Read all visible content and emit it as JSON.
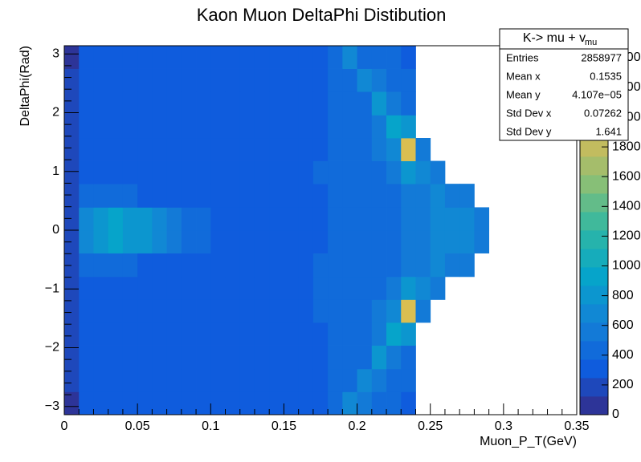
{
  "chart_data": {
    "type": "heatmap",
    "title": "Kaon Muon DeltaPhi Distibution",
    "x_label": "Muon_P_T(GeV)",
    "y_label": "DeltaPhi(Rad)",
    "xlim": [
      0,
      0.35
    ],
    "ylim": [
      -3.14,
      3.14
    ],
    "xticks": [
      0,
      0.05,
      0.1,
      0.15,
      0.2,
      0.25,
      0.3,
      0.35
    ],
    "yticks": [
      {
        "value": -3,
        "label": "−3"
      },
      {
        "value": -2,
        "label": "−2"
      },
      {
        "value": -1,
        "label": "−1"
      },
      0,
      1,
      2,
      3
    ],
    "zlim": [
      0,
      2480
    ],
    "zticks": [
      0,
      200,
      400,
      600,
      800,
      1000,
      1200,
      1400,
      1600,
      1800,
      2000,
      2200,
      2400
    ],
    "contours": 20,
    "palette": [
      "#352a87",
      "#0f5cdd",
      "#1481d6",
      "#06a4ca",
      "#2eb7a4",
      "#87bf77",
      "#d1bb59",
      "#fec832",
      "#f9fb0e"
    ],
    "x_bins": [
      0,
      0.01,
      0.02,
      0.03,
      0.04,
      0.05,
      0.06,
      0.07,
      0.08,
      0.09,
      0.1,
      0.11,
      0.12,
      0.13,
      0.14,
      0.15,
      0.16,
      0.17,
      0.18,
      0.19,
      0.2,
      0.21,
      0.22,
      0.23,
      0.24,
      0.25,
      0.26,
      0.27,
      0.28,
      0.29,
      0.3
    ],
    "y_bins": [
      -3.14,
      -2.75,
      -2.36,
      -1.96,
      -1.57,
      -1.18,
      -0.79,
      -0.39,
      0,
      0.39,
      0.79,
      1.18,
      1.57,
      1.96,
      2.36,
      2.75,
      3.14
    ],
    "z": [
      [
        120,
        290,
        300,
        310,
        300,
        295,
        305,
        300,
        300,
        310,
        300,
        305,
        300,
        310,
        315,
        320,
        330,
        360,
        450,
        650,
        500,
        420,
        380,
        350,
        0,
        0,
        0,
        0,
        0,
        0
      ],
      [
        130,
        300,
        305,
        300,
        310,
        300,
        300,
        305,
        310,
        300,
        305,
        310,
        315,
        320,
        325,
        330,
        340,
        360,
        380,
        450,
        700,
        520,
        430,
        380,
        0,
        0,
        0,
        0,
        0,
        0
      ],
      [
        140,
        310,
        320,
        315,
        320,
        310,
        315,
        320,
        310,
        315,
        320,
        325,
        320,
        330,
        335,
        340,
        350,
        360,
        380,
        400,
        460,
        780,
        560,
        460,
        0,
        0,
        0,
        0,
        0,
        0
      ],
      [
        150,
        320,
        330,
        325,
        330,
        320,
        325,
        330,
        320,
        330,
        325,
        330,
        335,
        340,
        345,
        350,
        355,
        365,
        380,
        400,
        440,
        520,
        950,
        850,
        0,
        0,
        0,
        0,
        0,
        0
      ],
      [
        150,
        330,
        340,
        335,
        340,
        330,
        335,
        340,
        330,
        335,
        340,
        345,
        340,
        350,
        355,
        360,
        365,
        375,
        390,
        410,
        440,
        500,
        700,
        1950,
        600,
        0,
        0,
        0,
        0,
        0
      ],
      [
        150,
        340,
        360,
        355,
        345,
        335,
        340,
        335,
        340,
        335,
        340,
        345,
        350,
        350,
        355,
        360,
        370,
        380,
        390,
        400,
        420,
        460,
        520,
        800,
        650,
        600,
        0,
        0,
        0,
        0
      ],
      [
        160,
        420,
        470,
        440,
        400,
        360,
        345,
        340,
        340,
        345,
        340,
        345,
        350,
        355,
        355,
        360,
        365,
        375,
        385,
        395,
        410,
        440,
        490,
        600,
        610,
        620,
        600,
        560,
        0,
        0
      ],
      [
        170,
        700,
        850,
        880,
        850,
        800,
        650,
        550,
        450,
        380,
        360,
        355,
        350,
        355,
        360,
        360,
        365,
        370,
        380,
        390,
        410,
        440,
        490,
        580,
        600,
        620,
        650,
        650,
        600,
        0
      ],
      [
        170,
        690,
        840,
        870,
        860,
        790,
        640,
        540,
        445,
        385,
        360,
        350,
        355,
        350,
        360,
        365,
        365,
        370,
        380,
        395,
        410,
        445,
        490,
        585,
        600,
        625,
        650,
        645,
        600,
        0
      ],
      [
        160,
        415,
        465,
        445,
        395,
        360,
        345,
        340,
        345,
        340,
        345,
        340,
        350,
        355,
        360,
        360,
        365,
        370,
        385,
        395,
        415,
        440,
        495,
        600,
        615,
        620,
        600,
        555,
        0,
        0
      ],
      [
        150,
        335,
        355,
        350,
        345,
        340,
        335,
        340,
        335,
        340,
        345,
        340,
        350,
        355,
        350,
        360,
        365,
        380,
        390,
        405,
        420,
        465,
        520,
        810,
        650,
        590,
        0,
        0,
        0,
        0
      ],
      [
        150,
        325,
        335,
        340,
        335,
        335,
        330,
        335,
        335,
        330,
        345,
        340,
        345,
        345,
        355,
        355,
        365,
        370,
        390,
        410,
        445,
        505,
        720,
        1900,
        590,
        0,
        0,
        0,
        0,
        0
      ],
      [
        150,
        315,
        325,
        330,
        325,
        325,
        320,
        325,
        330,
        325,
        330,
        335,
        330,
        340,
        340,
        350,
        360,
        365,
        385,
        405,
        445,
        530,
        930,
        860,
        0,
        0,
        0,
        0,
        0,
        0
      ],
      [
        140,
        305,
        315,
        320,
        315,
        315,
        310,
        315,
        315,
        320,
        315,
        320,
        325,
        330,
        335,
        345,
        345,
        365,
        385,
        405,
        470,
        760,
        570,
        455,
        0,
        0,
        0,
        0,
        0,
        0
      ],
      [
        130,
        295,
        300,
        305,
        305,
        305,
        300,
        300,
        305,
        305,
        300,
        305,
        310,
        320,
        320,
        335,
        345,
        355,
        385,
        460,
        690,
        510,
        425,
        375,
        0,
        0,
        0,
        0,
        0,
        0
      ],
      [
        115,
        285,
        295,
        300,
        305,
        300,
        300,
        295,
        305,
        305,
        305,
        300,
        305,
        305,
        310,
        325,
        335,
        365,
        460,
        640,
        495,
        415,
        375,
        345,
        0,
        0,
        0,
        0,
        0,
        0
      ]
    ],
    "stats": {
      "title": "K-> mu + v",
      "title_sub": "mu",
      "rows": [
        [
          "Entries",
          "2858977"
        ],
        [
          "Mean x",
          "0.1535"
        ],
        [
          "Mean y",
          "4.107e−05"
        ],
        [
          "Std Dev x",
          "0.07262"
        ],
        [
          "Std Dev y",
          "1.641"
        ]
      ]
    }
  }
}
